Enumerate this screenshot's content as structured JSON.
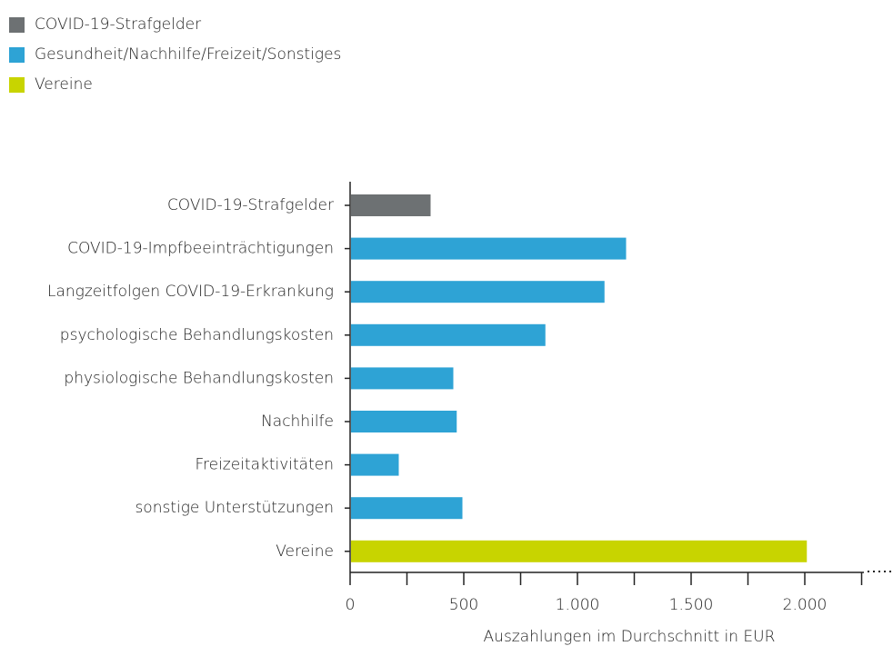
{
  "chart_data": {
    "type": "barh",
    "x_label": "Auszahlungen im Durchschnitt in EUR",
    "categories": [
      "COVID-19-Strafgelder",
      "COVID-19-Impfbeeinträchtigungen",
      "Langzeitfolgen COVID-19-Erkrankung",
      "psychologische Behandlungskosten",
      "physiologische Behandlungskosten",
      "Nachhilfe",
      "Freizeitaktivitäten",
      "sonstige Unterstützungen",
      "Vereine"
    ],
    "series": [
      {
        "name": "COVID-19-Strafgelder",
        "color": "#6d7173",
        "values": [
          350,
          null,
          null,
          null,
          null,
          null,
          null,
          null,
          null
        ]
      },
      {
        "name": "Gesundheit/Nachhilfe/Freizeit/Sonstiges",
        "color": "#2ea3d5",
        "values": [
          null,
          1210,
          1115,
          855,
          450,
          465,
          210,
          490,
          null
        ]
      },
      {
        "name": "Vereine",
        "color": "#c8d400",
        "values": [
          null,
          null,
          null,
          null,
          null,
          null,
          null,
          null,
          2005
        ]
      }
    ],
    "xlim": [
      0,
      2260
    ],
    "xticks": [
      0,
      500,
      {
        "value": 1000,
        "label": "1.000"
      },
      {
        "value": 1500,
        "label": "1.500"
      },
      {
        "value": 2000,
        "label": "2.000"
      }
    ],
    "xminorticks": [
      250,
      750,
      1250,
      1750,
      2250
    ],
    "legend": "top-left"
  }
}
